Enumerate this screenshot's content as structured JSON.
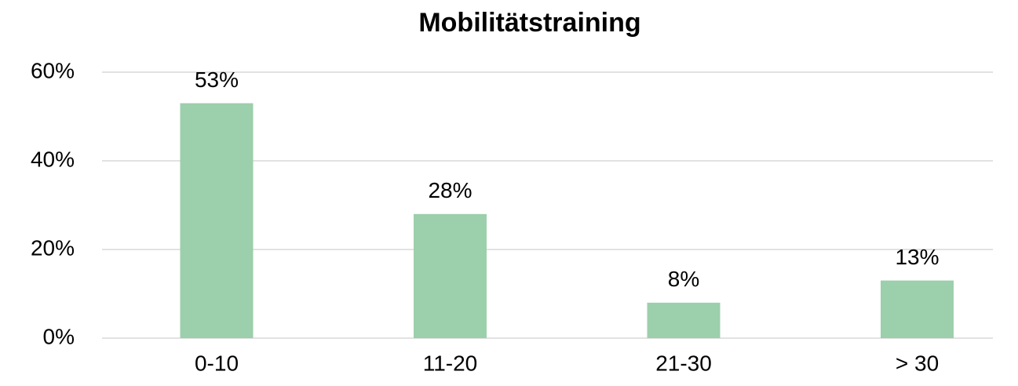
{
  "chart_data": {
    "type": "bar",
    "title": "Mobilitätstraining",
    "categories": [
      "0-10",
      "11-20",
      "21-30",
      "> 30"
    ],
    "values": [
      53,
      28,
      8,
      13
    ],
    "value_labels": [
      "53%",
      "28%",
      "8%",
      "13%"
    ],
    "color": "#9ccfab",
    "ylim": [
      0,
      60
    ],
    "yticks": [
      {
        "value": 0,
        "label": "0%"
      },
      {
        "value": 20,
        "label": "20%"
      },
      {
        "value": 40,
        "label": "40%"
      },
      {
        "value": 60,
        "label": "60%"
      }
    ],
    "grid": true
  }
}
